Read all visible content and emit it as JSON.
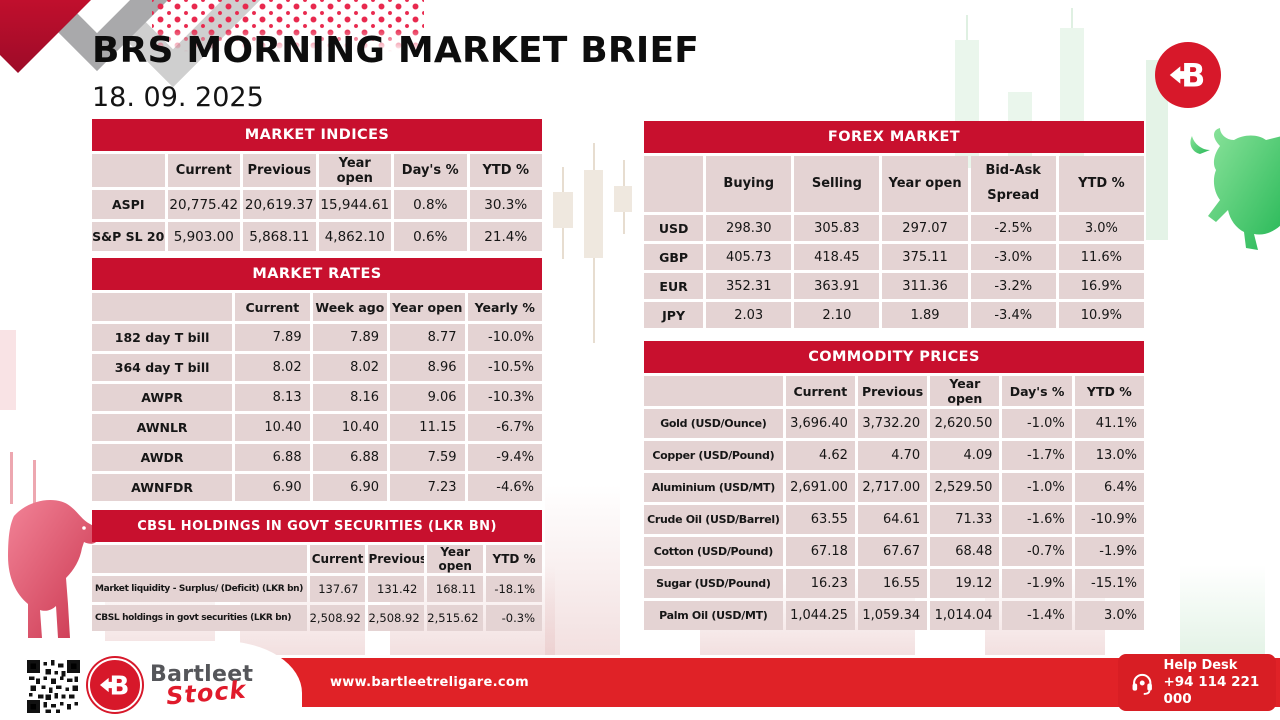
{
  "header": {
    "title": "BRS MORNING MARKET BRIEF",
    "date": "18. 09. 2025"
  },
  "tables": {
    "market_indices": {
      "title": "MARKET INDICES",
      "columns": [
        "",
        "Current",
        "Previous",
        "Year open",
        "Day's %",
        "YTD %"
      ],
      "rows": [
        [
          "ASPI",
          "20,775.42",
          "20,619.37",
          "15,944.61",
          "0.8%",
          "30.3%"
        ],
        [
          "S&P SL 20",
          "5,903.00",
          "5,868.11",
          "4,862.10",
          "0.6%",
          "21.4%"
        ]
      ]
    },
    "market_rates": {
      "title": "MARKET RATES",
      "columns": [
        "",
        "Current",
        "Week ago",
        "Year open",
        "Yearly %"
      ],
      "rows": [
        [
          "182 day T bill",
          "7.89",
          "7.89",
          "8.77",
          "-10.0%"
        ],
        [
          "364 day T bill",
          "8.02",
          "8.02",
          "8.96",
          "-10.5%"
        ],
        [
          "AWPR",
          "8.13",
          "8.16",
          "9.06",
          "-10.3%"
        ],
        [
          "AWNLR",
          "10.40",
          "10.40",
          "11.15",
          "-6.7%"
        ],
        [
          "AWDR",
          "6.88",
          "6.88",
          "7.59",
          "-9.4%"
        ],
        [
          "AWNFDR",
          "6.90",
          "6.90",
          "7.23",
          "-4.6%"
        ]
      ]
    },
    "cbsl_holdings": {
      "title": "CBSL HOLDINGS IN GOVT SECURITIES (LKR BN)",
      "columns": [
        "",
        "Current",
        "Previous",
        "Year open",
        "YTD %"
      ],
      "rows": [
        [
          "Market liquidity - Surplus/ (Deficit) (LKR bn)",
          "137.67",
          "131.42",
          "168.11",
          "-18.1%"
        ],
        [
          "CBSL holdings in govt securities (LKR bn)",
          "2,508.92",
          "2,508.92",
          "2,515.62",
          "-0.3%"
        ]
      ]
    },
    "forex_market": {
      "title": "FOREX MARKET",
      "columns": [
        "",
        "Buying",
        "Selling",
        "Year open",
        "Bid-Ask Spread",
        "YTD %"
      ],
      "rows": [
        [
          "USD",
          "298.30",
          "305.83",
          "297.07",
          "-2.5%",
          "3.0%"
        ],
        [
          "GBP",
          "405.73",
          "418.45",
          "375.11",
          "-3.0%",
          "11.6%"
        ],
        [
          "EUR",
          "352.31",
          "363.91",
          "311.36",
          "-3.2%",
          "16.9%"
        ],
        [
          "JPY",
          "2.03",
          "2.10",
          "1.89",
          "-3.4%",
          "10.9%"
        ]
      ]
    },
    "commodity_prices": {
      "title": "COMMODITY PRICES",
      "columns": [
        "",
        "Current",
        "Previous",
        "Year open",
        "Day's %",
        "YTD %"
      ],
      "rows": [
        [
          "Gold (USD/Ounce)",
          "3,696.40",
          "3,732.20",
          "2,620.50",
          "-1.0%",
          "41.1%"
        ],
        [
          "Copper (USD/Pound)",
          "4.62",
          "4.70",
          "4.09",
          "-1.7%",
          "13.0%"
        ],
        [
          "Aluminium (USD/MT)",
          "2,691.00",
          "2,717.00",
          "2,529.50",
          "-1.0%",
          "6.4%"
        ],
        [
          "Crude Oil (USD/Barrel)",
          "63.55",
          "64.61",
          "71.33",
          "-1.6%",
          "-10.9%"
        ],
        [
          "Cotton (USD/Pound)",
          "67.18",
          "67.67",
          "68.48",
          "-0.7%",
          "-1.9%"
        ],
        [
          "Sugar (USD/Pound)",
          "16.23",
          "16.55",
          "19.12",
          "-1.9%",
          "-15.1%"
        ],
        [
          "Palm Oil (USD/MT)",
          "1,044.25",
          "1,059.34",
          "1,014.04",
          "-1.4%",
          "3.0%"
        ]
      ]
    }
  },
  "footer": {
    "brand_name": "Bartleet",
    "brand_sub": "Stock",
    "website": "www.bartleetreligare.com",
    "help_desk_label": "Help Desk",
    "help_desk_phone": "+94 114 221 000"
  },
  "icons": {
    "brand_logo": "b-left-arrow-circle",
    "help_desk": "headset",
    "qr": "qr-code",
    "bear": "bear-market",
    "bull": "bull-market"
  },
  "colors": {
    "table_header_red": "#c8102e",
    "row_pink": "#e4d3d3",
    "footer_red": "#e02227",
    "brand_red": "#d7182a",
    "bull_green": "#3dbe64",
    "bear_red": "#d64057"
  }
}
